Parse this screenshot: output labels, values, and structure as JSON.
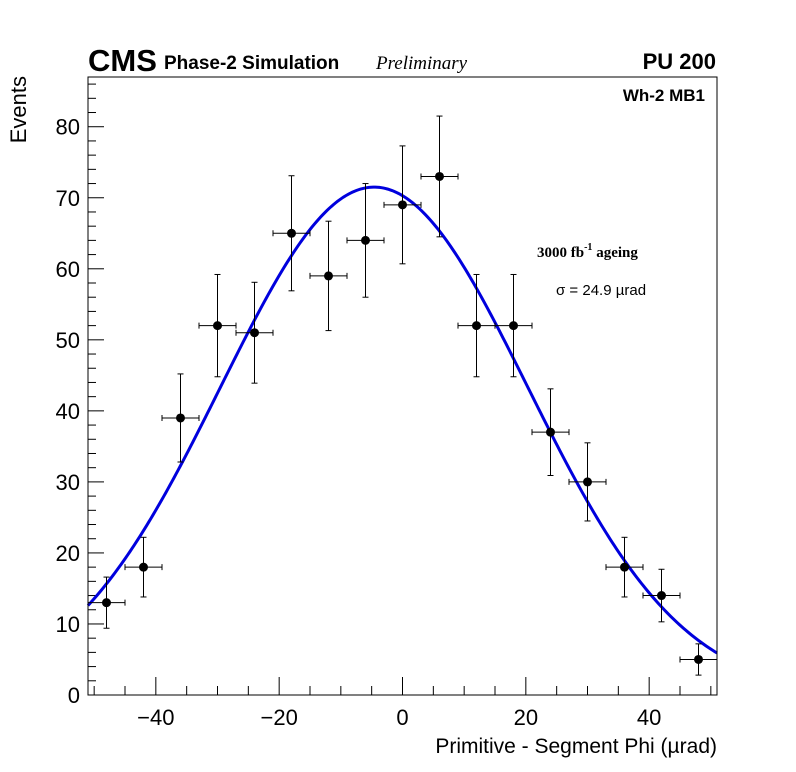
{
  "chart_data": {
    "type": "scatter",
    "experiment": "CMS",
    "subtitle": "Phase-2 Simulation",
    "status": "Preliminary",
    "pileup": "PU 200",
    "station": "Wh-2 MB1",
    "ageing_value": "3000 fb",
    "ageing_exponent": "-1",
    "ageing_suffix": " ageing",
    "sigma_label": "σ = 24.9 µrad",
    "xlabel": "Primitive - Segment Phi (µrad)",
    "ylabel": "Events",
    "xlim": [
      -51,
      51
    ],
    "ylim": [
      0,
      87
    ],
    "x_ticks": [
      -40,
      -20,
      0,
      20,
      40
    ],
    "x_tick_labels": [
      "−40",
      "−20",
      "0",
      "20",
      "40"
    ],
    "y_ticks": [
      0,
      10,
      20,
      30,
      40,
      50,
      60,
      70,
      80
    ],
    "y_tick_labels": [
      "0",
      "10",
      "20",
      "30",
      "40",
      "50",
      "60",
      "70",
      "80"
    ],
    "bin_half_width": 3,
    "series": [
      {
        "name": "Simulation",
        "style": "points_with_errors",
        "color": "#000000",
        "x": [
          -48,
          -42,
          -36,
          -30,
          -24,
          -18,
          -12,
          -6,
          0,
          6,
          12,
          18,
          24,
          30,
          36,
          42,
          48
        ],
        "y": [
          13,
          18,
          39,
          52,
          51,
          65,
          59,
          64,
          69,
          73,
          52,
          52,
          37,
          30,
          18,
          14,
          5
        ],
        "y_err": [
          3.6,
          4.2,
          6.2,
          7.2,
          7.1,
          8.1,
          7.7,
          8.0,
          8.3,
          8.5,
          7.2,
          7.2,
          6.1,
          5.5,
          4.2,
          3.7,
          2.2
        ]
      },
      {
        "name": "Gaussian fit",
        "style": "curve",
        "color": "#0000dd",
        "amplitude": 71.5,
        "mean": -4.6,
        "sigma": 24.9
      }
    ]
  }
}
